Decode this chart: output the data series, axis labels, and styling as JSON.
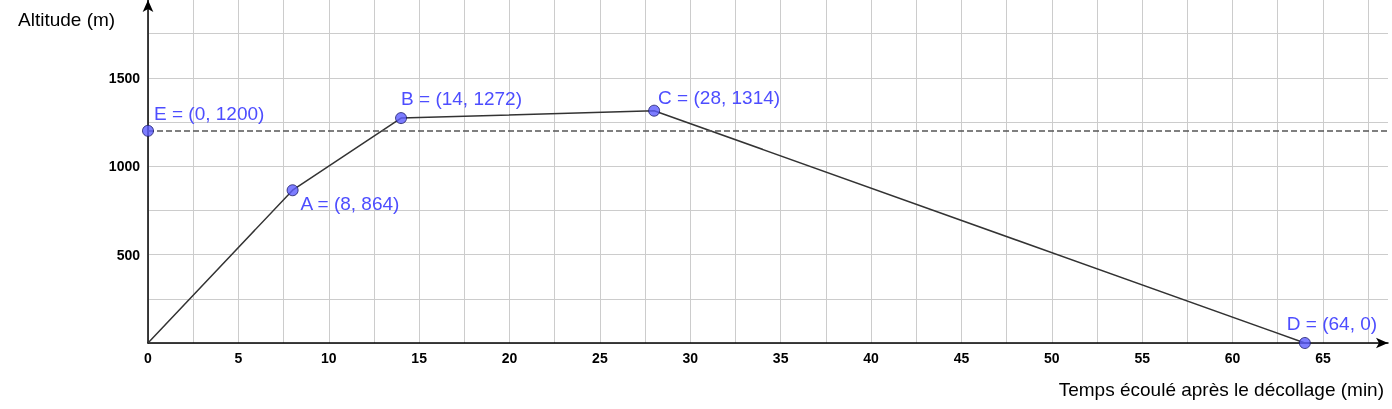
{
  "chart_data": {
    "type": "line",
    "xlabel": "Temps écoulé après le décollage (min)",
    "ylabel": "Altitude (m)",
    "xlim": [
      0,
      68.6
    ],
    "ylim": [
      0,
      1940
    ],
    "xticks": [
      0,
      {
        "value": 2.5,
        "label": null
      },
      5,
      {
        "value": 7.5,
        "label": null
      },
      10,
      {
        "value": 12.5,
        "label": null
      },
      15,
      {
        "value": 17.5,
        "label": null
      },
      20,
      {
        "value": 22.5,
        "label": null
      },
      25,
      {
        "value": 27.5,
        "label": null
      },
      30,
      {
        "value": 32.5,
        "label": null
      },
      35,
      {
        "value": 37.5,
        "label": null
      },
      40,
      {
        "value": 42.5,
        "label": null
      },
      45,
      {
        "value": 47.5,
        "label": null
      },
      50,
      {
        "value": 52.5,
        "label": null
      },
      55,
      {
        "value": 57.5,
        "label": null
      },
      60,
      {
        "value": 62.5,
        "label": null
      },
      65,
      {
        "value": 67.5,
        "label": null
      }
    ],
    "yticks": [
      {
        "value": 0,
        "label": null
      },
      {
        "value": 250,
        "label": null
      },
      500,
      {
        "value": 750,
        "label": null
      },
      1000,
      {
        "value": 1250,
        "label": null
      },
      1500,
      {
        "value": 1750,
        "label": null
      }
    ],
    "grid": true,
    "series": [
      {
        "color": "#333333",
        "marker": "none",
        "x": [
          0,
          8,
          14,
          28,
          64
        ],
        "values": [
          0,
          864,
          1272,
          1314,
          0
        ]
      },
      {
        "type": "scatter",
        "color": "#5c5cff",
        "marker": "circle",
        "x": [
          8,
          14,
          28,
          64,
          0
        ],
        "values": [
          864,
          1272,
          1314,
          0,
          1200
        ]
      }
    ],
    "ref_lines": [
      {
        "axis": "y",
        "value": 1200,
        "color": "#555555",
        "line_style": "dashed"
      }
    ],
    "annotations": [
      {
        "text": "A = (8, 864)",
        "x": 8,
        "y": 864
      },
      {
        "text": "B = (14, 1272)",
        "x": 14,
        "y": 1272
      },
      {
        "text": "C = (28, 1314)",
        "x": 28,
        "y": 1314
      },
      {
        "text": "D = (64, 0)",
        "x": 64,
        "y": 0
      },
      {
        "text": "E = (0, 1200)",
        "x": 0,
        "y": 1200
      }
    ]
  }
}
